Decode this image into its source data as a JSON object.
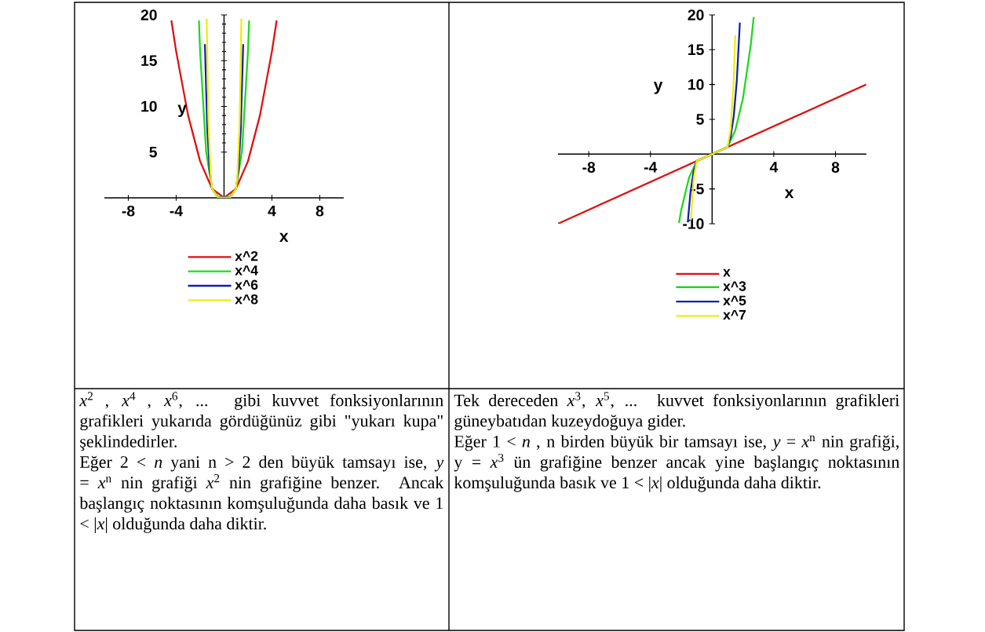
{
  "chart_data": [
    {
      "type": "line",
      "xlabel": "x",
      "ylabel": "y",
      "xlim": [
        -10,
        10
      ],
      "ylim": [
        0,
        20
      ],
      "xticks": [
        -8,
        -4,
        4,
        8
      ],
      "yticks": [
        5,
        10,
        15,
        20
      ],
      "legend": "bottom",
      "marker": "none",
      "line_style": "solid",
      "series": [
        {
          "name": "x^2",
          "color": "#e01010",
          "x": [
            -4.4,
            -4,
            -3,
            -2,
            -1,
            0,
            1,
            2,
            3,
            4,
            4.4
          ],
          "values": [
            19.4,
            16,
            9,
            4,
            1,
            0,
            1,
            4,
            9,
            16,
            19.4
          ]
        },
        {
          "name": "x^4",
          "color": "#20d820",
          "x": [
            -2.1,
            -2,
            -1.5,
            -1,
            -0.5,
            0,
            0.5,
            1,
            1.5,
            2,
            2.1
          ],
          "values": [
            19.4,
            16,
            5.1,
            1,
            0.1,
            0,
            0.1,
            1,
            5.1,
            16,
            19.4
          ]
        },
        {
          "name": "x^6",
          "color": "#1020b0",
          "x": [
            -1.6,
            -1.4,
            -1.2,
            -1,
            -0.5,
            0,
            0.5,
            1,
            1.2,
            1.4,
            1.6
          ],
          "values": [
            16.8,
            7.5,
            3,
            1,
            0,
            0,
            0,
            1,
            3,
            7.5,
            16.8
          ]
        },
        {
          "name": "x^8",
          "color": "#f0ec10",
          "x": [
            -1.45,
            -1.3,
            -1.1,
            -1,
            -0.5,
            0,
            0.5,
            1,
            1.1,
            1.3,
            1.45
          ],
          "values": [
            19.6,
            8.2,
            2.1,
            1,
            0,
            0,
            0,
            1,
            2.1,
            8.2,
            19.6
          ]
        }
      ],
      "annotations": [
        "*x*$^{2}$ , *x*$^{4}$ , *x*$^{6}$, ... gibi kuvvet fonksiyonlarının grafikleri yukarıda gördüğünüz gibi \"yukarı kupa\" şeklindedirler.",
        "Eğer 2 < *n* yani n > 2 den büyük tamsayı ise, *y* = *x*$^{n}$ nin grafiği *x*$^{2}$ nin grafiğine benzer. Ancak başlangıç noktasının komşuluğunda daha basık ve 1 < |*x*| olduğunda daha diktir."
      ]
    },
    {
      "type": "line",
      "xlabel": "x",
      "ylabel": "y",
      "xlim": [
        -10,
        10
      ],
      "ylim": [
        -10,
        20
      ],
      "xticks": [
        -8,
        -4,
        4,
        8
      ],
      "yticks": [
        -10,
        -5,
        5,
        10,
        15,
        20
      ],
      "legend": "bottom",
      "marker": "none",
      "line_style": "solid",
      "series": [
        {
          "name": "x",
          "color": "#e01010",
          "x": [
            -10,
            10
          ],
          "values": [
            -10,
            10
          ]
        },
        {
          "name": "x^3",
          "color": "#20d820",
          "x": [
            -2.15,
            -2,
            -1.5,
            -1,
            0,
            1,
            1.5,
            2,
            2.5,
            2.7
          ],
          "values": [
            -9.9,
            -8,
            -3.4,
            -1,
            0,
            1,
            3.4,
            8,
            15.6,
            19.7
          ]
        },
        {
          "name": "x^5",
          "color": "#1020b0",
          "x": [
            -1.58,
            -1.4,
            -1.2,
            -1,
            0,
            1,
            1.2,
            1.4,
            1.6,
            1.8
          ],
          "values": [
            -9.8,
            -5.4,
            -2.5,
            -1,
            0,
            1,
            2.5,
            5.4,
            10.5,
            18.9
          ]
        },
        {
          "name": "x^7",
          "color": "#f0ec10",
          "x": [
            -1.38,
            -1.2,
            -1,
            0,
            1,
            1.2,
            1.4,
            1.5
          ],
          "values": [
            -9.5,
            -3.6,
            -1,
            0,
            1,
            3.6,
            10.5,
            17.1
          ]
        }
      ],
      "annotations": [
        "Tek dereceden *x*$^{3}$, *x*$^{5}$, ... kuvvet fonksiyonlarının grafikleri güneybatıdan kuzeydoğuya gider.",
        "Eğer 1 < *n* , n birden büyük bir tamsayı ise, *y* = *x*$^{n}$ nin grafiği, y = *x*$^{3}$ ün grafiğine benzer ancak yine başlangıç noktasının komşuluğunda basık ve 1 < |*x*| olduğunda daha diktir."
      ]
    }
  ]
}
